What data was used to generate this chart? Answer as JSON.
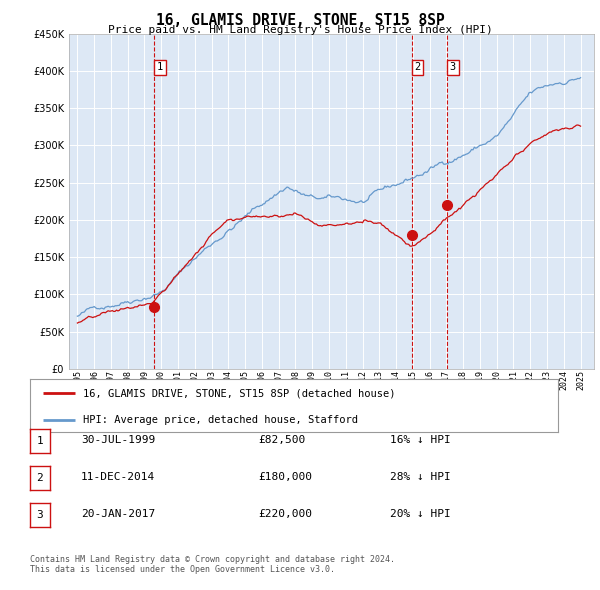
{
  "title": "16, GLAMIS DRIVE, STONE, ST15 8SP",
  "subtitle": "Price paid vs. HM Land Registry's House Price Index (HPI)",
  "ylim": [
    0,
    450000
  ],
  "yticks": [
    0,
    50000,
    100000,
    150000,
    200000,
    250000,
    300000,
    350000,
    400000,
    450000
  ],
  "xlim_left": 1994.5,
  "xlim_right": 2025.8,
  "plot_bg": "#dde8f5",
  "hpi_color": "#6699cc",
  "price_color": "#cc1111",
  "vline_color": "#cc1111",
  "sales": [
    {
      "label": "1",
      "date": "30-JUL-1999",
      "price": 82500,
      "x": 1999.58
    },
    {
      "label": "2",
      "date": "11-DEC-2014",
      "price": 180000,
      "x": 2014.94
    },
    {
      "label": "3",
      "date": "20-JAN-2017",
      "price": 220000,
      "x": 2017.05
    }
  ],
  "legend_label_price": "16, GLAMIS DRIVE, STONE, ST15 8SP (detached house)",
  "legend_label_hpi": "HPI: Average price, detached house, Stafford",
  "footer": "Contains HM Land Registry data © Crown copyright and database right 2024.\nThis data is licensed under the Open Government Licence v3.0.",
  "table_rows": [
    [
      "1",
      "30-JUL-1999",
      "£82,500",
      "16% ↓ HPI"
    ],
    [
      "2",
      "11-DEC-2014",
      "£180,000",
      "28% ↓ HPI"
    ],
    [
      "3",
      "20-JAN-2017",
      "£220,000",
      "20% ↓ HPI"
    ]
  ]
}
